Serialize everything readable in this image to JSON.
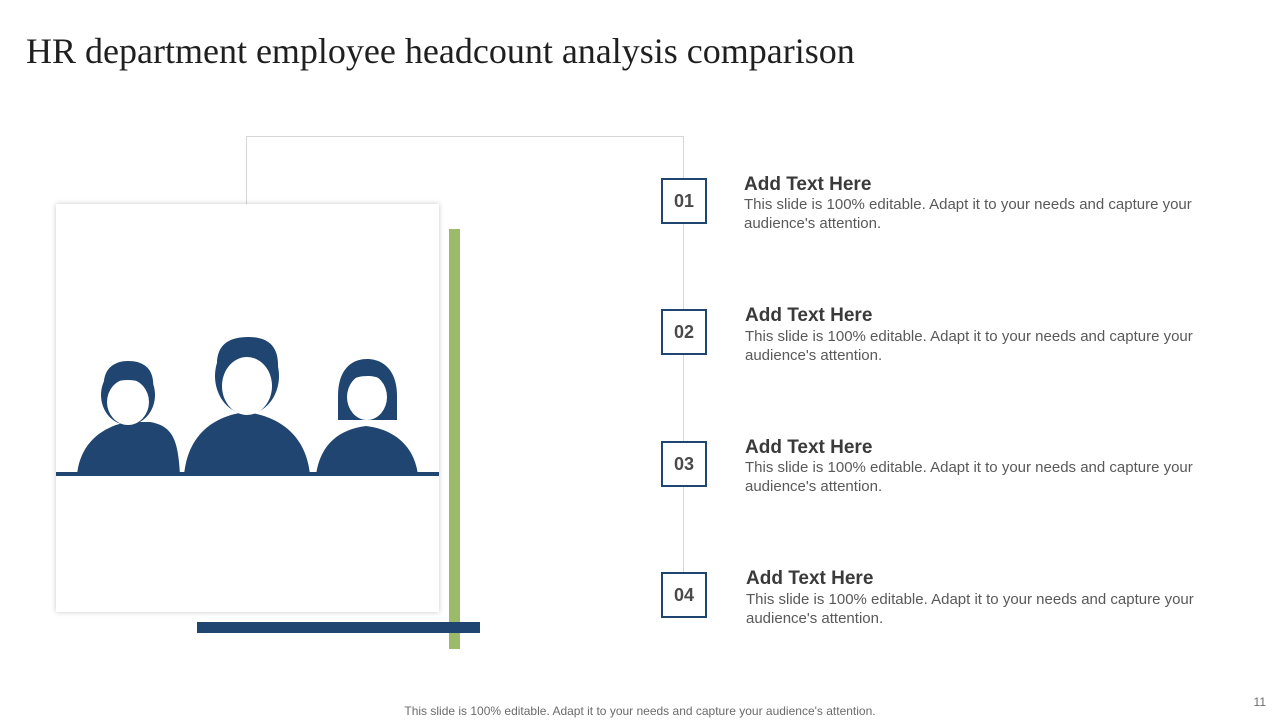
{
  "slide": {
    "title": "HR department employee headcount analysis comparison",
    "footer_note": "This slide is 100% editable. Adapt it to your needs and capture your audience's attention.",
    "page_number": "11"
  },
  "colors": {
    "navy": "#1f4570",
    "green": "#9bbb6a",
    "line_gray": "#d6d6d6"
  },
  "graphic": {
    "icon": "people-group-icon"
  },
  "steps": [
    {
      "number": "01",
      "heading": "Add Text Here",
      "description": "This slide is 100% editable. Adapt it to your needs and capture your audience's attention."
    },
    {
      "number": "02",
      "heading": "Add Text Here",
      "description": "This slide is 100% editable. Adapt it to your needs and capture your audience's attention."
    },
    {
      "number": "03",
      "heading": "Add Text Here",
      "description": "This slide is 100% editable. Adapt it to your needs and capture your audience's attention."
    },
    {
      "number": "04",
      "heading": "Add Text Here",
      "description": "This slide is 100% editable. Adapt it to your needs and capture your audience's attention."
    }
  ]
}
